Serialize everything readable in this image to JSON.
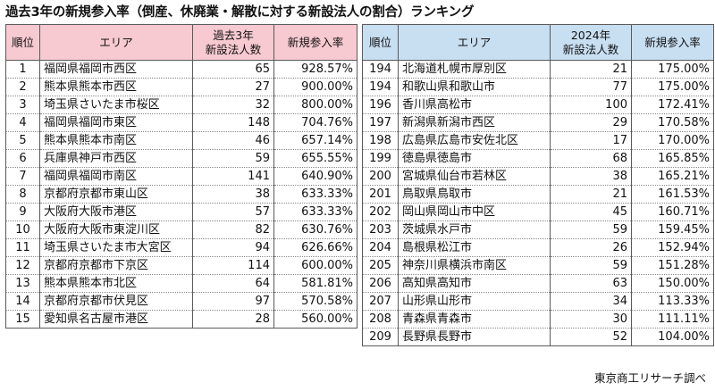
{
  "title": "過去3年の新規参入率（倒産、休廃業・解散に対する新設法人の割合）ランキング",
  "left_table": {
    "headers": {
      "rank": "順位",
      "area": "エリア",
      "count_line1": "過去3年",
      "count_line2": "新設法人数",
      "rate": "新規参入率"
    },
    "rows": [
      {
        "rank": "1",
        "area": "福岡県福岡市西区",
        "count": "65",
        "rate": "928.57%"
      },
      {
        "rank": "2",
        "area": "熊本県熊本市西区",
        "count": "27",
        "rate": "900.00%"
      },
      {
        "rank": "3",
        "area": "埼玉県さいたま市桜区",
        "count": "32",
        "rate": "800.00%"
      },
      {
        "rank": "4",
        "area": "福岡県福岡市東区",
        "count": "148",
        "rate": "704.76%"
      },
      {
        "rank": "5",
        "area": "熊本県熊本市南区",
        "count": "46",
        "rate": "657.14%"
      },
      {
        "rank": "6",
        "area": "兵庫県神戸市西区",
        "count": "59",
        "rate": "655.55%"
      },
      {
        "rank": "7",
        "area": "福岡県福岡市南区",
        "count": "141",
        "rate": "640.90%"
      },
      {
        "rank": "8",
        "area": "京都府京都市東山区",
        "count": "38",
        "rate": "633.33%"
      },
      {
        "rank": "9",
        "area": "大阪府大阪市港区",
        "count": "57",
        "rate": "633.33%"
      },
      {
        "rank": "10",
        "area": "大阪府大阪市東淀川区",
        "count": "82",
        "rate": "630.76%"
      },
      {
        "rank": "11",
        "area": "埼玉県さいたま市大宮区",
        "count": "94",
        "rate": "626.66%"
      },
      {
        "rank": "12",
        "area": "京都府京都市下京区",
        "count": "114",
        "rate": "600.00%"
      },
      {
        "rank": "13",
        "area": "熊本県熊本市北区",
        "count": "64",
        "rate": "581.81%"
      },
      {
        "rank": "14",
        "area": "京都府京都市伏見区",
        "count": "97",
        "rate": "570.58%"
      },
      {
        "rank": "15",
        "area": "愛知県名古屋市港区",
        "count": "28",
        "rate": "560.00%"
      }
    ]
  },
  "right_table": {
    "headers": {
      "rank": "順位",
      "area": "エリア",
      "count_line1": "2024年",
      "count_line2": "新設法人数",
      "rate": "新規参入率"
    },
    "rows": [
      {
        "rank": "194",
        "area": "北海道札幌市厚別区",
        "count": "21",
        "rate": "175.00%"
      },
      {
        "rank": "194",
        "area": "和歌山県和歌山市",
        "count": "77",
        "rate": "175.00%"
      },
      {
        "rank": "196",
        "area": "香川県高松市",
        "count": "100",
        "rate": "172.41%"
      },
      {
        "rank": "197",
        "area": "新潟県新潟市西区",
        "count": "29",
        "rate": "170.58%"
      },
      {
        "rank": "198",
        "area": "広島県広島市安佐北区",
        "count": "17",
        "rate": "170.00%"
      },
      {
        "rank": "199",
        "area": "徳島県徳島市",
        "count": "68",
        "rate": "165.85%"
      },
      {
        "rank": "200",
        "area": "宮城県仙台市若林区",
        "count": "38",
        "rate": "165.21%"
      },
      {
        "rank": "201",
        "area": "鳥取県鳥取市",
        "count": "21",
        "rate": "161.53%"
      },
      {
        "rank": "202",
        "area": "岡山県岡山市中区",
        "count": "45",
        "rate": "160.71%"
      },
      {
        "rank": "203",
        "area": "茨城県水戸市",
        "count": "59",
        "rate": "159.45%"
      },
      {
        "rank": "204",
        "area": "島根県松江市",
        "count": "26",
        "rate": "152.94%"
      },
      {
        "rank": "205",
        "area": "神奈川県横浜市南区",
        "count": "59",
        "rate": "151.28%"
      },
      {
        "rank": "206",
        "area": "高知県高知市",
        "count": "63",
        "rate": "150.00%"
      },
      {
        "rank": "207",
        "area": "山形県山形市",
        "count": "34",
        "rate": "113.33%"
      },
      {
        "rank": "208",
        "area": "青森県青森市",
        "count": "30",
        "rate": "111.11%"
      },
      {
        "rank": "209",
        "area": "長野県長野市",
        "count": "52",
        "rate": "104.00%"
      }
    ]
  },
  "source": "東京商工リサーチ調べ",
  "colors": {
    "left_header_bg": "#f7c9d0",
    "right_header_bg": "#c8dff2",
    "border": "#5a5a5a"
  }
}
